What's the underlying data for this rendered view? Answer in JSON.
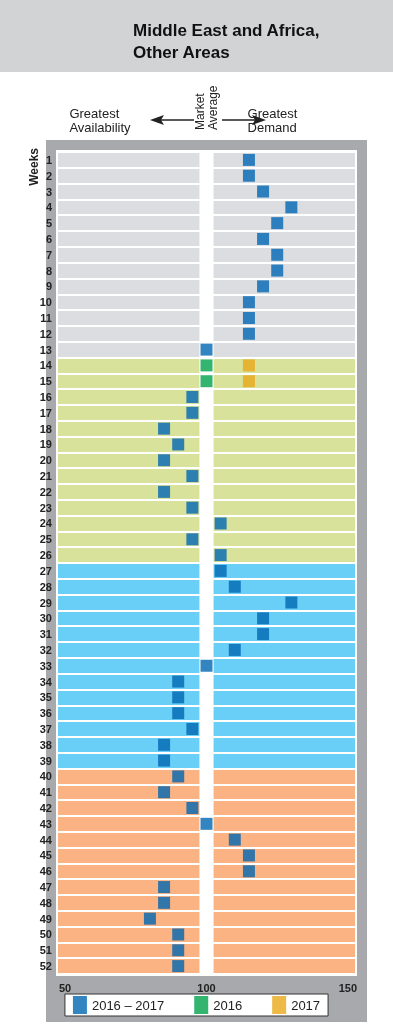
{
  "chart_data": {
    "type": "scatter",
    "title": "Middle East and Africa, Other Areas",
    "ylabel": "Weeks",
    "orientation": "horizontal",
    "categories": [
      "1",
      "2",
      "3",
      "4",
      "5",
      "6",
      "7",
      "8",
      "9",
      "10",
      "11",
      "12",
      "13",
      "14",
      "15",
      "16",
      "17",
      "18",
      "19",
      "20",
      "21",
      "22",
      "23",
      "24",
      "25",
      "26",
      "27",
      "28",
      "29",
      "30",
      "31",
      "32",
      "33",
      "34",
      "35",
      "36",
      "37",
      "38",
      "39",
      "40",
      "41",
      "42",
      "43",
      "44",
      "45",
      "46",
      "47",
      "48",
      "49",
      "50",
      "51",
      "52"
    ],
    "series": [
      {
        "name": "2016 – 2017",
        "color": "#0066b3",
        "values": [
          115,
          115,
          120,
          130,
          125,
          120,
          125,
          125,
          120,
          115,
          115,
          115,
          100,
          null,
          null,
          95,
          95,
          85,
          90,
          85,
          95,
          85,
          95,
          105,
          95,
          105,
          105,
          110,
          130,
          120,
          120,
          110,
          100,
          90,
          90,
          90,
          95,
          85,
          85,
          90,
          85,
          95,
          100,
          110,
          115,
          115,
          85,
          85,
          80,
          90,
          90,
          90
        ]
      },
      {
        "name": "2016",
        "color": "#00a14b",
        "values": [
          null,
          null,
          null,
          null,
          null,
          null,
          null,
          null,
          null,
          null,
          null,
          null,
          null,
          100,
          100,
          null,
          null,
          null,
          null,
          null,
          null,
          null,
          null,
          null,
          null,
          null,
          null,
          null,
          null,
          null,
          null,
          null,
          null,
          null,
          null,
          null,
          null,
          null,
          null,
          null,
          null,
          null,
          null,
          null,
          null,
          null,
          null,
          null,
          null,
          null,
          null,
          null
        ]
      },
      {
        "name": "2017",
        "color": "#e8a819",
        "values": [
          null,
          null,
          null,
          null,
          null,
          null,
          null,
          null,
          null,
          null,
          null,
          null,
          null,
          115,
          115,
          null,
          null,
          null,
          null,
          null,
          null,
          null,
          null,
          null,
          null,
          null,
          null,
          null,
          null,
          null,
          null,
          null,
          null,
          null,
          null,
          null,
          null,
          null,
          null,
          null,
          null,
          null,
          null,
          null,
          null,
          null,
          null,
          null,
          null,
          null,
          null,
          null
        ]
      }
    ],
    "xlim": [
      47.5,
      152.5
    ],
    "xticks": [
      50,
      100,
      150
    ],
    "bands": [
      {
        "axis": "y",
        "from": "1",
        "to": "13",
        "color": "#dcdde0"
      },
      {
        "axis": "y",
        "from": "14",
        "to": "26",
        "color": "#d9e29b"
      },
      {
        "axis": "y",
        "from": "27",
        "to": "39",
        "color": "#6acff6"
      },
      {
        "axis": "y",
        "from": "40",
        "to": "52",
        "color": "#fbb383"
      },
      {
        "axis": "x",
        "from": 97.5,
        "to": 102.5,
        "color": "#ffffff",
        "label": "Market Average"
      }
    ],
    "annotations": [
      "Greatest Availability",
      "Greatest Demand"
    ],
    "grid": "y",
    "marker": "square",
    "legend": "bottom"
  }
}
